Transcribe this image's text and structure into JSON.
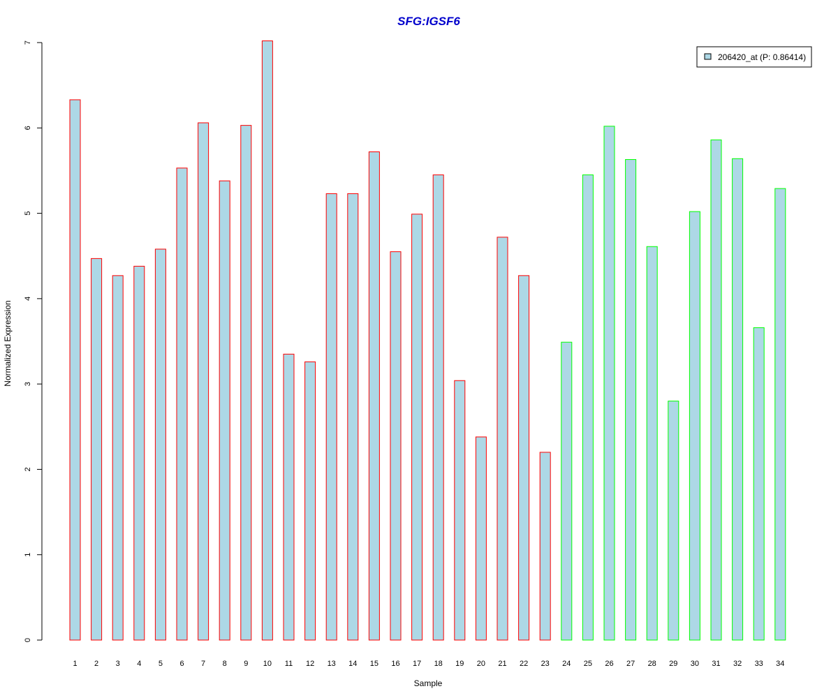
{
  "chart_data": {
    "type": "bar",
    "title": "SFG:IGSF6",
    "xlabel": "Sample",
    "ylabel": "Normalized Expression",
    "categories": [
      "1",
      "2",
      "3",
      "4",
      "5",
      "6",
      "7",
      "8",
      "9",
      "10",
      "11",
      "12",
      "13",
      "14",
      "15",
      "16",
      "17",
      "18",
      "19",
      "20",
      "21",
      "22",
      "23",
      "24",
      "25",
      "26",
      "27",
      "28",
      "29",
      "30",
      "31",
      "32",
      "33",
      "34"
    ],
    "values": [
      6.33,
      4.47,
      4.27,
      4.38,
      4.58,
      5.53,
      6.06,
      5.38,
      6.03,
      7.02,
      3.35,
      3.26,
      5.23,
      5.23,
      5.72,
      4.55,
      4.99,
      5.45,
      3.04,
      2.38,
      4.72,
      4.27,
      2.2,
      3.49,
      5.45,
      6.02,
      5.63,
      4.61,
      2.8,
      5.02,
      5.86,
      5.64,
      3.66,
      5.29
    ],
    "group_outline": [
      "red",
      "red",
      "red",
      "red",
      "red",
      "red",
      "red",
      "red",
      "red",
      "red",
      "red",
      "red",
      "red",
      "red",
      "red",
      "red",
      "red",
      "red",
      "red",
      "red",
      "red",
      "red",
      "red",
      "green",
      "green",
      "green",
      "green",
      "green",
      "green",
      "green",
      "green",
      "green",
      "green",
      "green"
    ],
    "ylim": [
      0,
      7
    ],
    "yticks": [
      "0",
      "1",
      "2",
      "3",
      "4",
      "5",
      "6",
      "7"
    ],
    "legend": {
      "label": "206420_at (P: 0.86414)",
      "placement": "top-right"
    },
    "grid": false,
    "colors": {
      "fill": "#add8e6",
      "outline_red": "#ff0000",
      "outline_green": "#00ff00",
      "title": "#0000cc"
    }
  }
}
